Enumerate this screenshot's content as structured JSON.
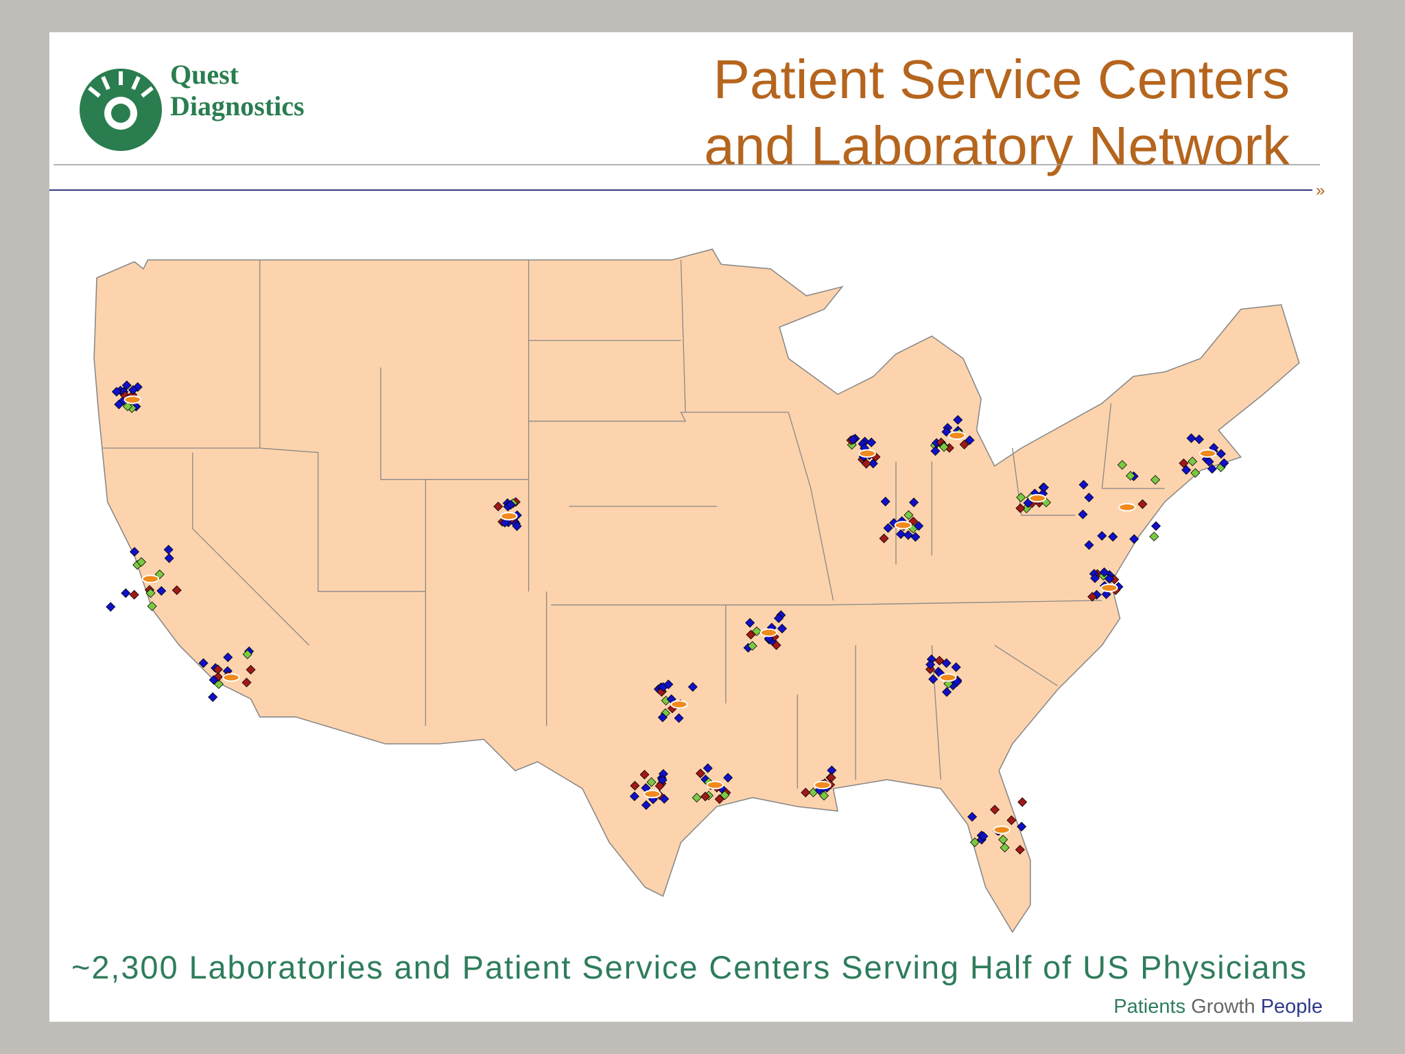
{
  "logo": {
    "line1": "Quest",
    "line2": "Diagnostics"
  },
  "title": {
    "line1": "Patient Service Centers",
    "line2": "and Laboratory Network"
  },
  "marker": "»",
  "caption": "~2,300 Laboratories and Patient Service Centers Serving Half of US Physicians",
  "tagline": {
    "word1": "Patients",
    "word2": "Growth",
    "word3": "People"
  }
}
